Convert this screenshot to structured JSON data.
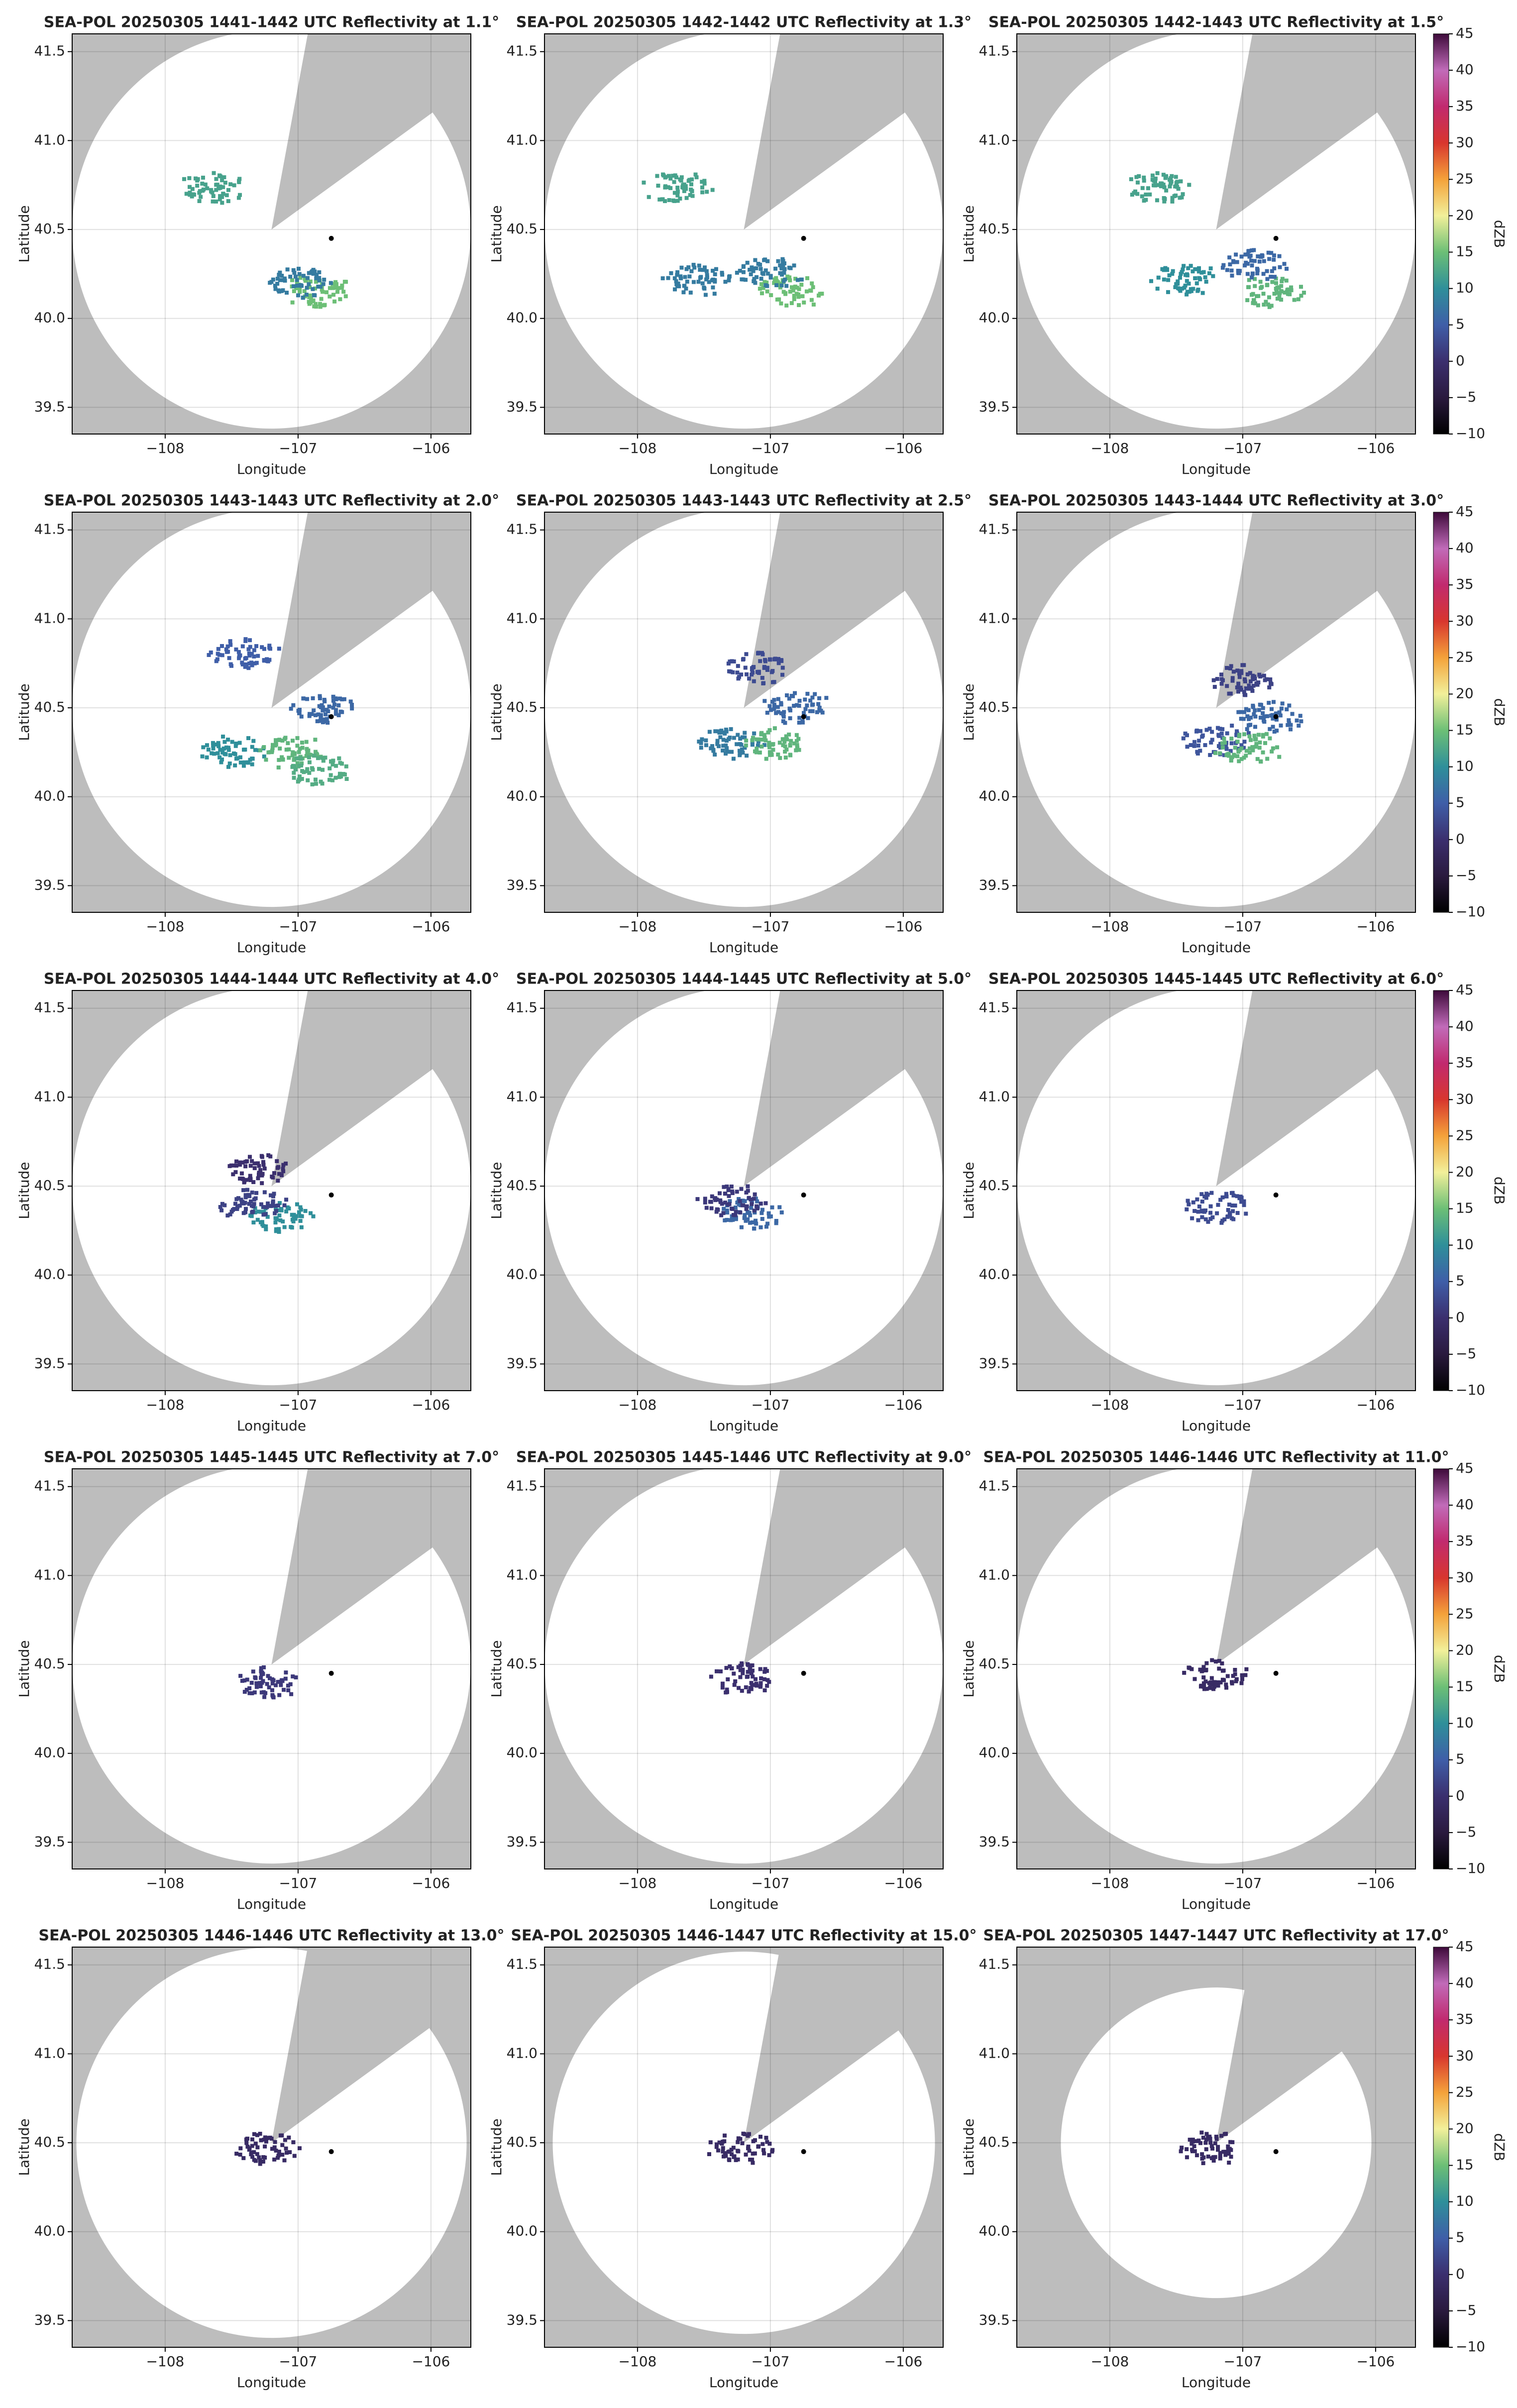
{
  "axes": {
    "xlabel": "Longitude",
    "ylabel": "Latitude",
    "xlim": [
      -108.7,
      -105.7
    ],
    "ylim": [
      39.35,
      41.6
    ],
    "xticks": [
      {
        "value": -108,
        "label": "−108"
      },
      {
        "value": -107,
        "label": "−107"
      },
      {
        "value": -106,
        "label": "−106"
      }
    ],
    "yticks": [
      39.5,
      {
        "value": 40,
        "label": "40.0"
      },
      40.5,
      {
        "value": 41,
        "label": "41.0"
      },
      41.5
    ],
    "grid": true,
    "site": {
      "x": -106.75,
      "y": 40.45
    }
  },
  "colorbar": {
    "label": "dZB",
    "lim": [
      -10,
      45
    ],
    "ticks": [
      {
        "value": -10,
        "label": "−10"
      },
      {
        "value": -5,
        "label": "−5"
      },
      0,
      5,
      10,
      15,
      20,
      25,
      30,
      35,
      40,
      45
    ],
    "colormap": [
      "#000000",
      "#2a1a3e",
      "#3b2f6e",
      "#3f5ea8",
      "#2f8f9a",
      "#6cbf76",
      "#f2f09a",
      "#f4a23a",
      "#d8362e",
      "#c12a6e",
      "#c16bb9",
      "#3d0a3a"
    ]
  },
  "chart_data": [
    {
      "type": "radar",
      "title": "SEA-POL 20250305 1441-1442 UTC Reflectivity at 1.1°",
      "echoes": [
        {
          "lon": -106.85,
          "lat": 40.15,
          "dbz": 15
        },
        {
          "lon": -107.65,
          "lat": 40.73,
          "dbz": 12
        },
        {
          "lon": -107.0,
          "lat": 40.2,
          "dbz": 8
        }
      ]
    },
    {
      "type": "radar",
      "title": "SEA-POL 20250305 1442-1442 UTC Reflectivity at 1.3°",
      "echoes": [
        {
          "lon": -106.85,
          "lat": 40.15,
          "dbz": 15
        },
        {
          "lon": -107.55,
          "lat": 40.22,
          "dbz": 8
        },
        {
          "lon": -107.7,
          "lat": 40.73,
          "dbz": 12
        },
        {
          "lon": -107.0,
          "lat": 40.25,
          "dbz": 8
        }
      ]
    },
    {
      "type": "radar",
      "title": "SEA-POL 20250305 1442-1443 UTC Reflectivity at 1.5°",
      "echoes": [
        {
          "lon": -106.8,
          "lat": 40.15,
          "dbz": 14
        },
        {
          "lon": -107.45,
          "lat": 40.22,
          "dbz": 10
        },
        {
          "lon": -107.65,
          "lat": 40.73,
          "dbz": 12
        },
        {
          "lon": -106.9,
          "lat": 40.3,
          "dbz": 6
        }
      ]
    },
    {
      "type": "radar",
      "title": "SEA-POL 20250305 1443-1443 UTC Reflectivity at 2.0°",
      "echoes": [
        {
          "lon": -107.5,
          "lat": 40.25,
          "dbz": 10
        },
        {
          "lon": -107.05,
          "lat": 40.25,
          "dbz": 14
        },
        {
          "lon": -106.85,
          "lat": 40.15,
          "dbz": 13
        },
        {
          "lon": -107.4,
          "lat": 40.8,
          "dbz": 5
        },
        {
          "lon": -106.8,
          "lat": 40.5,
          "dbz": 6
        }
      ]
    },
    {
      "type": "radar",
      "title": "SEA-POL 20250305 1443-1443 UTC Reflectivity at 2.5°",
      "echoes": [
        {
          "lon": -107.3,
          "lat": 40.3,
          "dbz": 8
        },
        {
          "lon": -106.95,
          "lat": 40.3,
          "dbz": 14
        },
        {
          "lon": -107.1,
          "lat": 40.72,
          "dbz": 3
        },
        {
          "lon": -106.8,
          "lat": 40.5,
          "dbz": 6
        }
      ]
    },
    {
      "type": "radar",
      "title": "SEA-POL 20250305 1443-1444 UTC Reflectivity at 3.0°",
      "echoes": [
        {
          "lon": -107.2,
          "lat": 40.32,
          "dbz": 4
        },
        {
          "lon": -106.95,
          "lat": 40.28,
          "dbz": 14
        },
        {
          "lon": -107.0,
          "lat": 40.66,
          "dbz": 2
        },
        {
          "lon": -106.8,
          "lat": 40.45,
          "dbz": 6
        }
      ]
    },
    {
      "type": "radar",
      "title": "SEA-POL 20250305 1444-1444 UTC Reflectivity at 4.0°",
      "echoes": [
        {
          "lon": -107.15,
          "lat": 40.33,
          "dbz": 10
        },
        {
          "lon": -107.35,
          "lat": 40.4,
          "dbz": 2
        },
        {
          "lon": -107.3,
          "lat": 40.6,
          "dbz": 0
        }
      ]
    },
    {
      "type": "radar",
      "title": "SEA-POL 20250305 1444-1445 UTC Reflectivity at 5.0°",
      "echoes": [
        {
          "lon": -107.15,
          "lat": 40.35,
          "dbz": 6
        },
        {
          "lon": -107.3,
          "lat": 40.42,
          "dbz": 1
        }
      ]
    },
    {
      "type": "radar",
      "title": "SEA-POL 20250305 1445-1445 UTC Reflectivity at 6.0°",
      "echoes": [
        {
          "lon": -107.2,
          "lat": 40.38,
          "dbz": 3
        }
      ]
    },
    {
      "type": "radar",
      "title": "SEA-POL 20250305 1445-1445 UTC Reflectivity at 7.0°",
      "echoes": [
        {
          "lon": -107.22,
          "lat": 40.4,
          "dbz": 1
        }
      ]
    },
    {
      "type": "radar",
      "title": "SEA-POL 20250305 1445-1446 UTC Reflectivity at 9.0°",
      "echoes": [
        {
          "lon": -107.2,
          "lat": 40.42,
          "dbz": 0
        }
      ]
    },
    {
      "type": "radar",
      "title": "SEA-POL 20250305 1446-1446 UTC Reflectivity at 11.0°",
      "echoes": [
        {
          "lon": -107.2,
          "lat": 40.44,
          "dbz": -1
        }
      ]
    },
    {
      "type": "radar",
      "title": "SEA-POL 20250305 1446-1446 UTC Reflectivity at 13.0°",
      "echoes": [
        {
          "lon": -107.22,
          "lat": 40.47,
          "dbz": -1
        }
      ]
    },
    {
      "type": "radar",
      "title": "SEA-POL 20250305 1446-1447 UTC Reflectivity at 15.0°",
      "echoes": [
        {
          "lon": -107.22,
          "lat": 40.47,
          "dbz": -1
        }
      ]
    },
    {
      "type": "radar",
      "title": "SEA-POL 20250305 1447-1447 UTC Reflectivity at 17.0°",
      "echoes": [
        {
          "lon": -107.22,
          "lat": 40.47,
          "dbz": -1
        }
      ]
    }
  ]
}
